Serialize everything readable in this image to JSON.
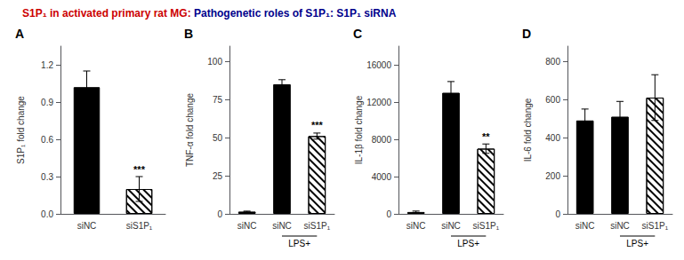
{
  "chart_data": [
    {
      "type": "bar",
      "title": "A",
      "annotations": [
        {
          "text": "S1P₁ in activated primary rat MG: ",
          "color": "#cc0000"
        },
        {
          "text": "Pathogenetic roles of S1P₁: S1P₁ siRNA",
          "color": "#00008B"
        }
      ],
      "ylabel": "S1P₁ fold change",
      "categories": [
        "siNC",
        "siS1P₁"
      ],
      "values": [
        1.02,
        0.2
      ],
      "errors": [
        0.13,
        0.1
      ],
      "colors": [
        "black",
        "white"
      ],
      "significance": [
        null,
        "***"
      ],
      "group_labels": [],
      "ylim": [
        0,
        1.35
      ],
      "yticks": [
        {
          "value": 0,
          "label": "0.0"
        },
        0.3,
        0.6,
        0.9,
        1.2
      ],
      "grid": false
    },
    {
      "type": "bar",
      "title": "B",
      "ylabel": "TNF-α fold change",
      "categories": [
        "siNC",
        "siNC",
        "siS1P₁"
      ],
      "values": [
        1.5,
        85.0,
        51.0
      ],
      "errors": [
        0.3,
        3.0,
        2.0
      ],
      "colors": [
        "black",
        "black",
        "white"
      ],
      "significance": [
        null,
        null,
        "***"
      ],
      "group_labels": [
        {
          "text": "LPS+",
          "from": 1,
          "to": 2
        }
      ],
      "ylim": [
        0,
        110
      ],
      "yticks": [
        0,
        25,
        50,
        75,
        100
      ],
      "grid": false
    },
    {
      "type": "bar",
      "title": "C",
      "ylabel": "IL-1β fold change",
      "categories": [
        "siNC",
        "siNC",
        "siS1P₁"
      ],
      "values": [
        200,
        13000,
        7000
      ],
      "errors": [
        100,
        1200,
        500
      ],
      "colors": [
        "black",
        "black",
        "white"
      ],
      "significance": [
        null,
        null,
        "**"
      ],
      "group_labels": [
        {
          "text": "LPS+",
          "from": 1,
          "to": 2
        }
      ],
      "ylim": [
        0,
        18000
      ],
      "yticks": [
        0,
        4000,
        8000,
        12000,
        16000
      ],
      "grid": false
    },
    {
      "type": "bar",
      "title": "D",
      "ylabel": "IL-6 fold change",
      "categories": [
        "siNC",
        "siNC",
        "siS1P₁"
      ],
      "values": [
        490,
        510,
        610
      ],
      "errors": [
        60,
        80,
        120
      ],
      "colors": [
        "black",
        "black",
        "white"
      ],
      "significance": [
        null,
        null,
        null
      ],
      "group_labels": [
        {
          "text": "LPS+",
          "from": 1,
          "to": 2
        }
      ],
      "ylim": [
        0,
        880
      ],
      "yticks": [
        0,
        200,
        400,
        600,
        800
      ],
      "grid": false
    }
  ]
}
